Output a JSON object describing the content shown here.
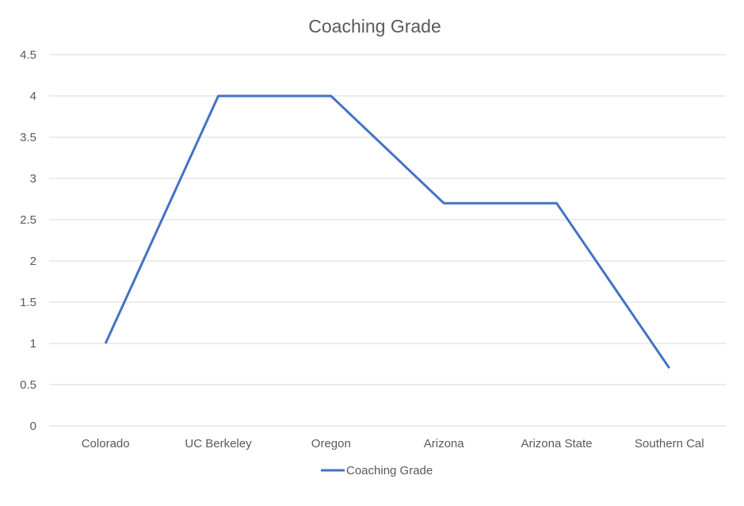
{
  "chart_data": {
    "type": "line",
    "title": "Coaching Grade",
    "xlabel": "",
    "ylabel": "",
    "categories": [
      "Colorado",
      "UC Berkeley",
      "Oregon",
      "Arizona",
      "Arizona State",
      "Southern Cal"
    ],
    "series": [
      {
        "name": "Coaching Grade",
        "values": [
          1,
          4,
          4,
          2.7,
          2.7,
          0.7
        ],
        "color": "#4472C4"
      }
    ],
    "ylim": [
      0,
      4.5
    ],
    "yticks": [
      "0",
      "0.5",
      "1",
      "1.5",
      "2",
      "2.5",
      "3",
      "3.5",
      "4",
      "4.5"
    ],
    "grid": true,
    "legend_position": "bottom",
    "gridline_color": "#D9D9D9",
    "text_color": "#595959"
  }
}
